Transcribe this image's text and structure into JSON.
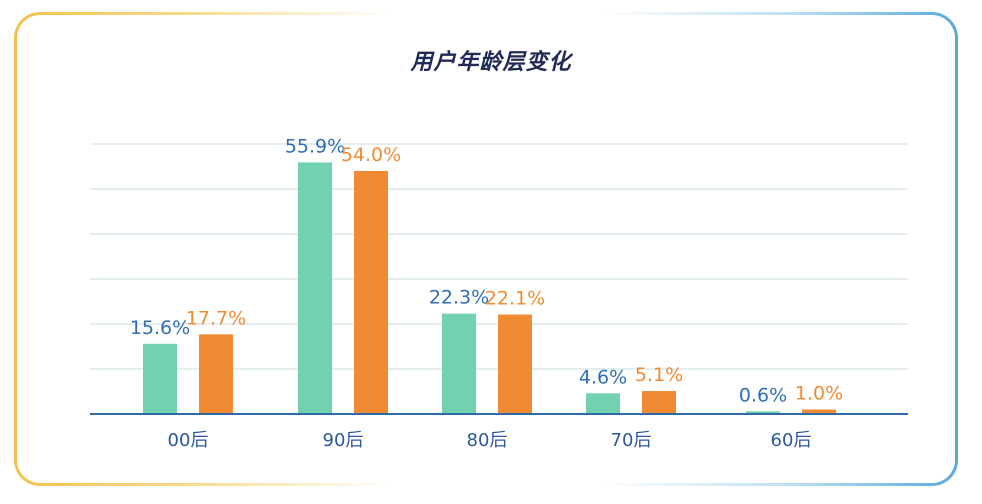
{
  "title": "用户年龄层变化",
  "colors": {
    "series1": "#72d1b1",
    "series2": "#f08a33",
    "label1": "#2f6eb5",
    "label2": "#f08a33",
    "grid": "#c9dbe6",
    "axis": "#2f6aa8"
  },
  "chart_data": {
    "type": "bar",
    "title": "用户年龄层变化",
    "categories": [
      "00后",
      "90后",
      "80后",
      "70后",
      "60后"
    ],
    "series": [
      {
        "values": [
          15.6,
          55.9,
          22.3,
          4.6,
          0.6
        ],
        "labels": [
          "15.6%",
          "55.9%",
          "22.3%",
          "4.6%",
          "0.6%"
        ]
      },
      {
        "values": [
          17.7,
          54.0,
          22.1,
          5.1,
          1.0
        ],
        "labels": [
          "17.7%",
          "54.0%",
          "22.1%",
          "5.1%",
          "1.0%"
        ]
      }
    ],
    "ylim": [
      0,
      60
    ],
    "grid": true,
    "legend": "none"
  }
}
